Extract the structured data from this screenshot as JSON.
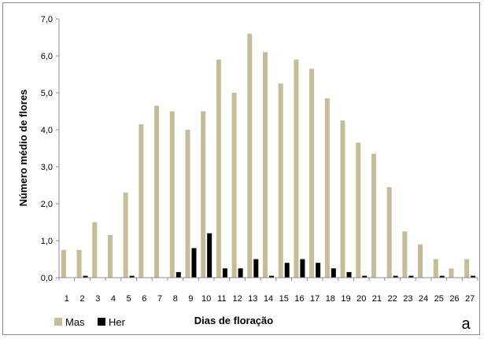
{
  "chart_data": {
    "type": "bar",
    "xlabel": "Dias de floração",
    "ylabel": "Número médio de flores",
    "panel_label": "a",
    "ylim": [
      0,
      7
    ],
    "yticks": [
      "0,0",
      "1,0",
      "2,0",
      "3,0",
      "4,0",
      "5,0",
      "6,0",
      "7,0"
    ],
    "categories": [
      "1",
      "2",
      "3",
      "4",
      "5",
      "6",
      "7",
      "8",
      "9",
      "10",
      "11",
      "12",
      "13",
      "14",
      "15",
      "16",
      "17",
      "18",
      "19",
      "20",
      "21",
      "22",
      "23",
      "24",
      "25",
      "26",
      "27"
    ],
    "legend_position": "bottom-left",
    "series": [
      {
        "name": "Mas",
        "color": "#c4bd97",
        "values": [
          0.75,
          0.75,
          1.5,
          1.15,
          2.3,
          4.15,
          4.65,
          4.5,
          4.0,
          4.5,
          5.9,
          5.0,
          6.6,
          6.1,
          5.25,
          5.9,
          5.65,
          4.85,
          4.25,
          3.65,
          3.35,
          2.45,
          1.25,
          0.9,
          0.5,
          0.25,
          0.5
        ]
      },
      {
        "name": "Her",
        "color": "#000000",
        "values": [
          0,
          0.05,
          0,
          0,
          0.05,
          0,
          0,
          0.15,
          0.8,
          1.2,
          0.25,
          0.25,
          0.5,
          0.05,
          0.4,
          0.5,
          0.4,
          0.25,
          0.15,
          0.05,
          0,
          0.05,
          0.05,
          0,
          0.05,
          0,
          0.05
        ]
      }
    ]
  }
}
